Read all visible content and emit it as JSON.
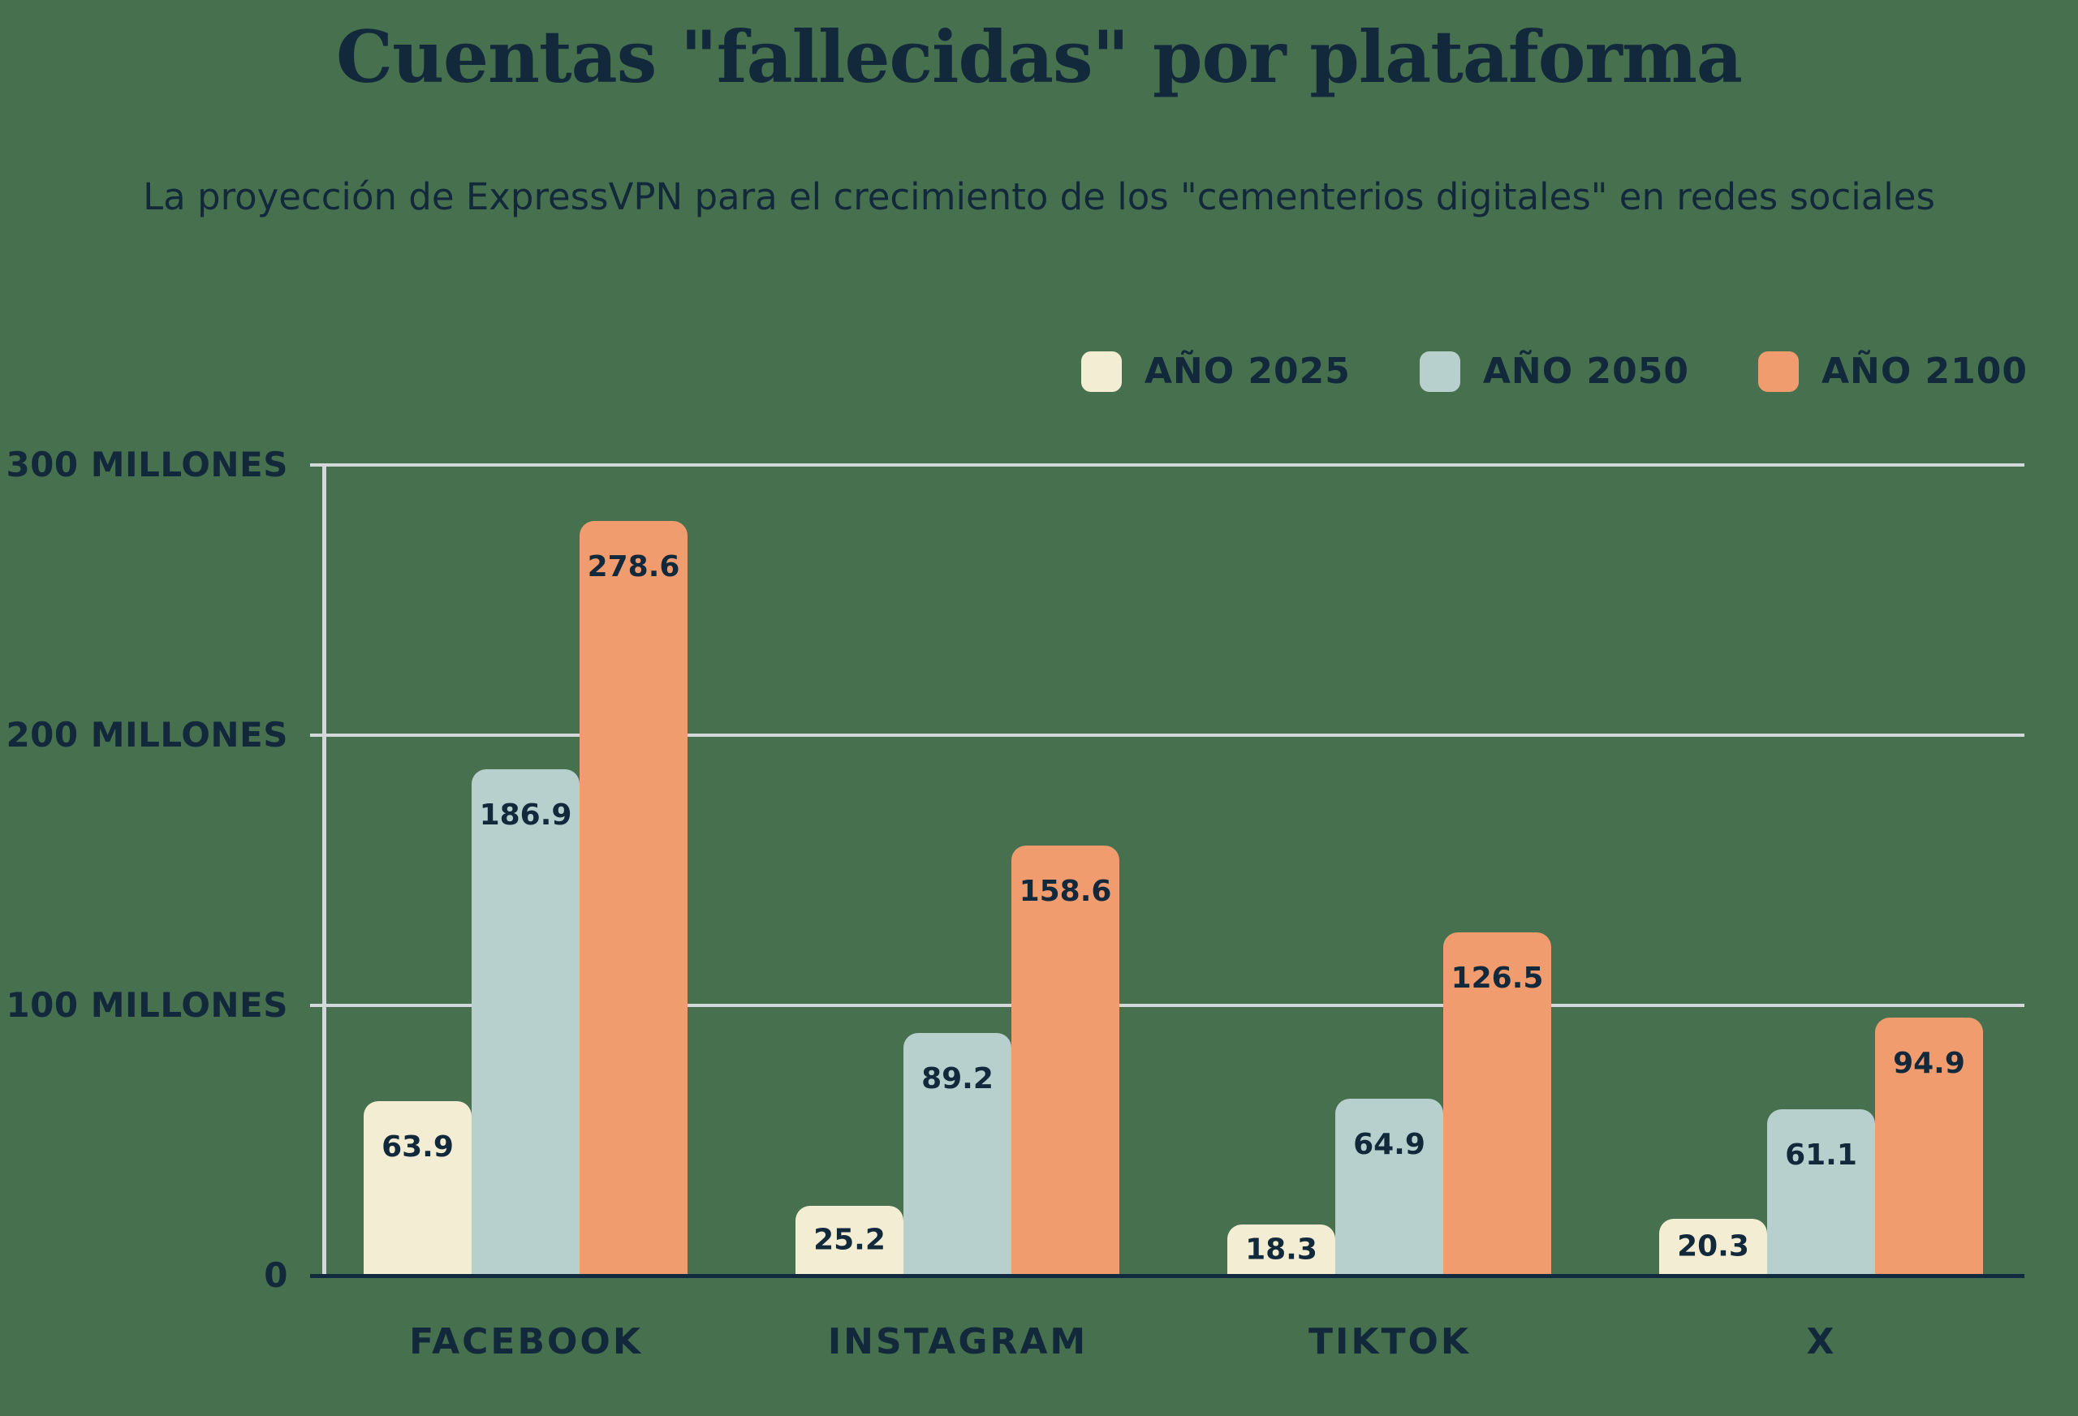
{
  "title": "Cuentas \"fallecidas\" por plataforma",
  "subtitle": "La proyección de ExpressVPN para el crecimiento de los \"cementerios digitales\" en redes sociales",
  "colors": {
    "background": "#47704E",
    "text_navy": "#12293C",
    "gridline": "#D3D8DB",
    "axis_line": "#122A3D",
    "serie_2025": "#F2EDD3",
    "serie_2050": "#B8D0CD",
    "serie_2100": "#F19C6E"
  },
  "chart_data": {
    "type": "bar",
    "title": "Cuentas \"fallecidas\" por plataforma",
    "subtitle": "La proyección de ExpressVPN para el crecimiento de los \"cementerios digitales\" en redes sociales",
    "categories": [
      "FACEBOOK",
      "INSTAGRAM",
      "TIKTOK",
      "X"
    ],
    "series": [
      {
        "name": "AÑO 2025",
        "color": "#F2EDD3",
        "values": [
          63.9,
          25.2,
          18.3,
          20.3
        ]
      },
      {
        "name": "AÑO 2050",
        "color": "#B8D0CD",
        "values": [
          186.9,
          89.2,
          64.9,
          61.1
        ]
      },
      {
        "name": "AÑO 2100",
        "color": "#F19C6E",
        "values": [
          278.6,
          158.6,
          126.5,
          94.9
        ]
      }
    ],
    "y_ticks": [
      {
        "value": 300,
        "label": "300 MILLONES"
      },
      {
        "value": 200,
        "label": "200 MILLONES"
      },
      {
        "value": 100,
        "label": "100 MILLONES"
      },
      {
        "value": 0,
        "label": "0"
      }
    ],
    "ylim": [
      0,
      300
    ],
    "unit": "millones",
    "grid": true,
    "legend_position": "top-right"
  }
}
